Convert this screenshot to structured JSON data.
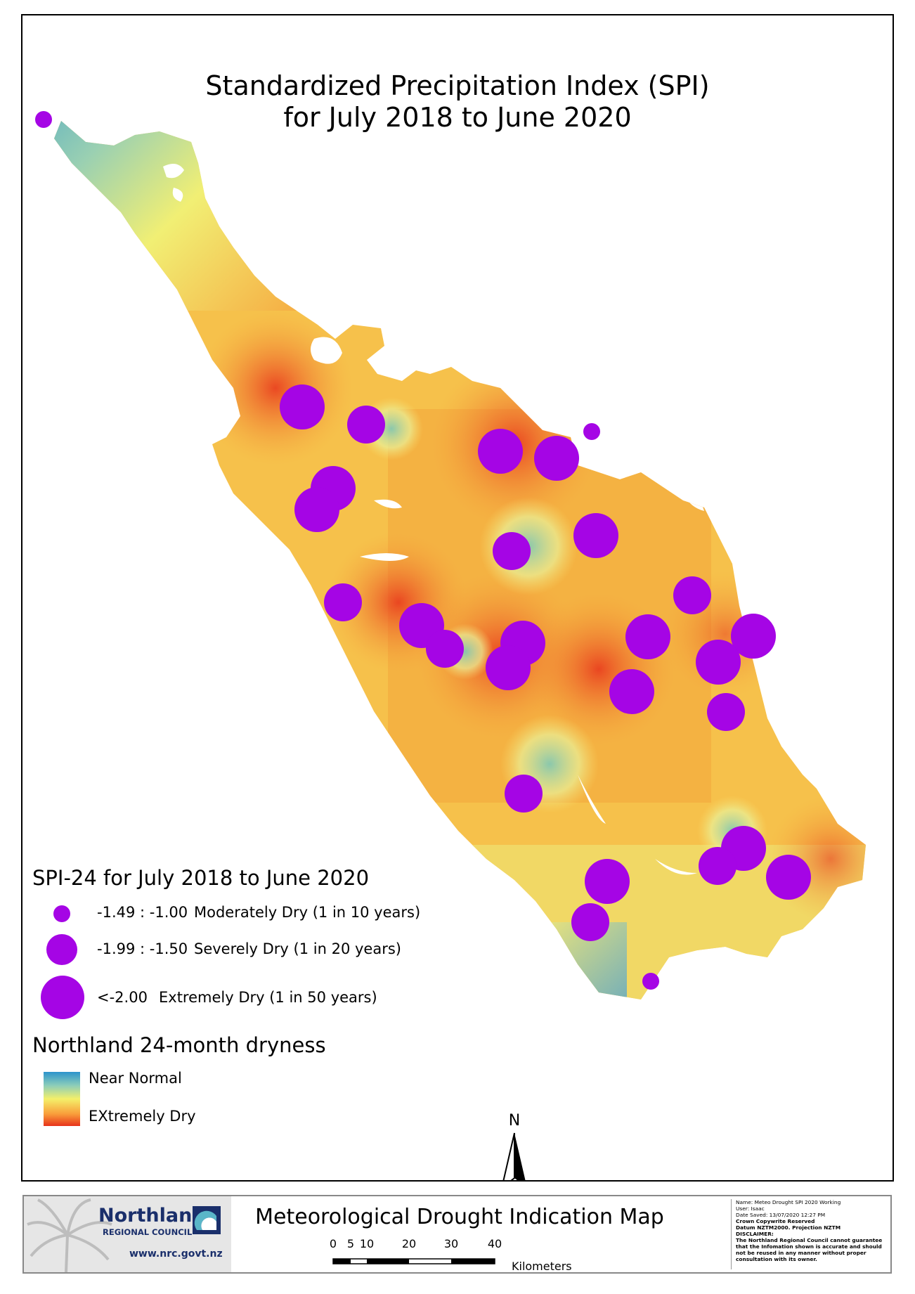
{
  "map": {
    "title_line1": "Standardized Precipitation Index (SPI)",
    "title_line2": "for July 2018 to June 2020",
    "north_label": "N"
  },
  "legend": {
    "title": "SPI-24 for July 2018 to June 2020",
    "classes": [
      {
        "range": "-1.49 : -1.00",
        "label": "Moderately Dry (1 in 10 years)",
        "size_class": "small"
      },
      {
        "range": "-1.99 : -1.50",
        "label": "Severely Dry (1 in 20 years)",
        "size_class": "medium"
      },
      {
        "range": "<-2.00",
        "label": "Extremely Dry (1 in 50 years)",
        "size_class": "large"
      }
    ],
    "ramp_title": "Northland 24-month dryness",
    "ramp_high": "Near Normal",
    "ramp_low": "EXtremely Dry"
  },
  "colors": {
    "station_dot": "#a505e5",
    "near_normal": "#2b94cd",
    "mid": "#f4f06a",
    "extremely_dry": "#e8331b"
  },
  "footer": {
    "org_name": "Northland",
    "org_sub": "REGIONAL COUNCIL",
    "org_url": "www.nrc.govt.nz",
    "title": "Meteorological Drought Indication Map",
    "scale_ticks": [
      "0",
      "5",
      "10",
      "20",
      "30",
      "40"
    ],
    "scale_unit": "Kilometers",
    "meta": {
      "name": "Name: Meteo Drought SPI 2020 Working",
      "user": "User: Isaac",
      "date": "Date Saved: 13/07/2020 12:27 PM",
      "copyright": "Crown Copywrite Reserved",
      "datum": "Datum NZTM2000. Projection NZTM",
      "disclaimer_head": "DISCLAIMER:",
      "disclaimer": "The Northland Regional Council cannot guarantee that the Infomation shown is accurate and should not be reused in any manner without proper consultation with its owner."
    }
  }
}
